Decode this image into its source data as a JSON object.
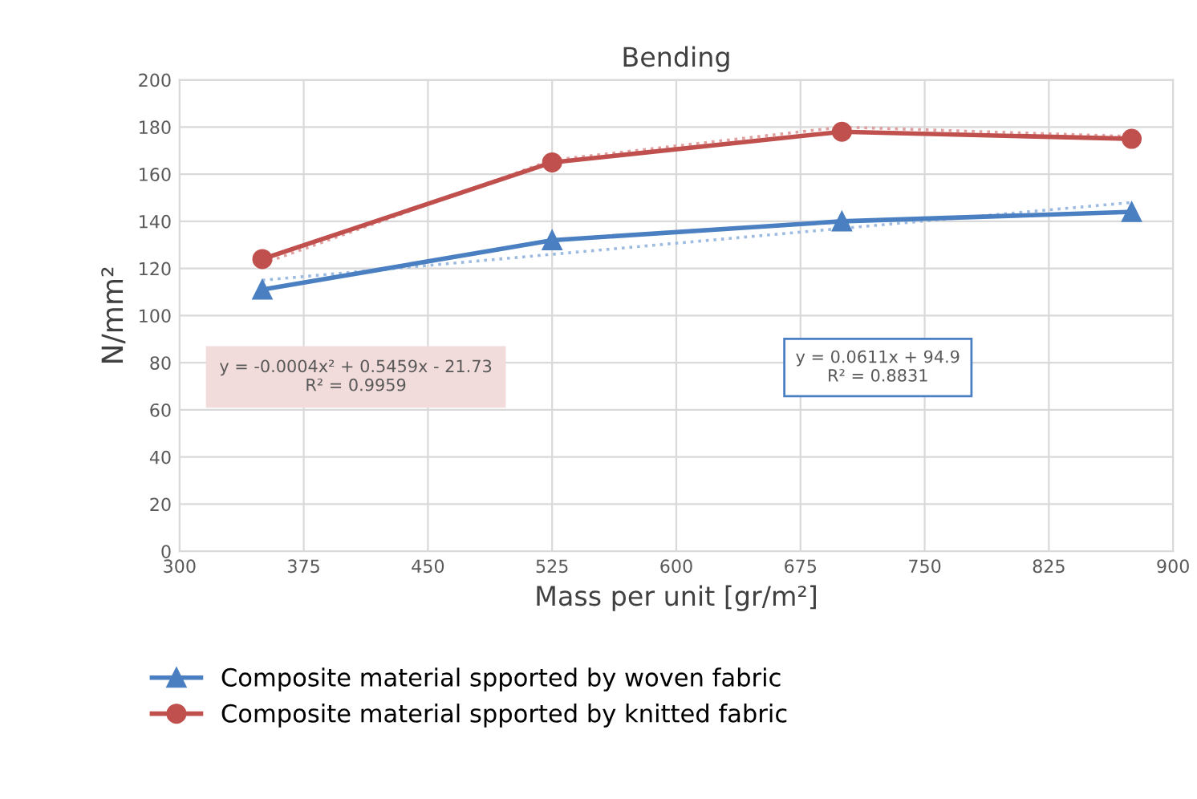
{
  "chart_data": {
    "type": "line",
    "title": "Bending",
    "xlabel": "Mass per unit [gr/m²]",
    "ylabel": "N/mm²",
    "x": [
      350,
      525,
      700,
      875
    ],
    "series": [
      {
        "name": "Composite material spported by woven fabric",
        "color": "#4a7fc1",
        "marker": "triangle",
        "values": [
          111,
          132,
          140,
          144
        ]
      },
      {
        "name": "Composite material spported by knitted fabric",
        "color": "#c0504d",
        "marker": "circle",
        "values": [
          124,
          165,
          178,
          175
        ]
      },
      {
        "color": "#9dbbe0",
        "line_style": "dotted",
        "marker": "none",
        "x": [
          350,
          875
        ],
        "values": [
          115,
          148
        ]
      },
      {
        "color": "#e0a0a0",
        "line_style": "dotted",
        "marker": "none",
        "x": [
          350,
          525,
          700,
          875
        ],
        "values": [
          122,
          166,
          180,
          176
        ]
      }
    ],
    "annotations": [
      "y = -0.0004x² + 0.5459x - 21.73\nR² = 0.9959",
      "y = 0.0611x + 94.9\nR² = 0.8831"
    ],
    "xlim": [
      300,
      900
    ],
    "xticks": [
      300,
      375,
      450,
      525,
      600,
      675,
      750,
      825,
      900
    ],
    "ylim": [
      0,
      200
    ],
    "yticks": [
      0,
      20,
      40,
      60,
      80,
      100,
      120,
      140,
      160,
      180,
      200
    ],
    "grid": true,
    "legend": "bottom"
  }
}
